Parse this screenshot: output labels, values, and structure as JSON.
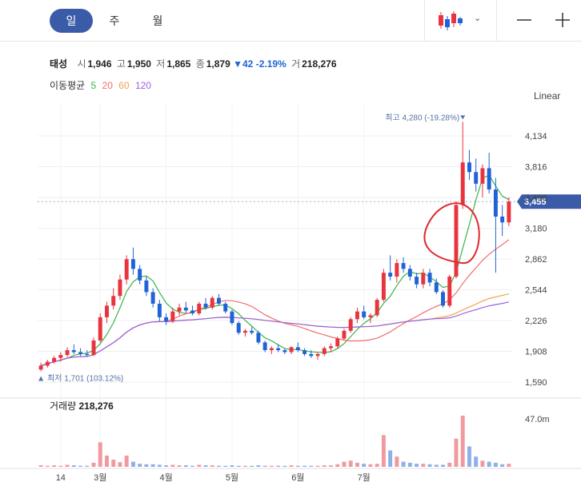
{
  "tabs": [
    {
      "label": "일",
      "active": true
    },
    {
      "label": "주",
      "active": false
    },
    {
      "label": "월",
      "active": false
    }
  ],
  "toolbar": {
    "candle_icon": "candlestick-icon",
    "chevron_icon": "chevron-down-icon",
    "minus_icon": "minus-icon",
    "plus_icon": "plus-icon",
    "linear_label": "Linear"
  },
  "quote": {
    "name": "태성",
    "open_label": "시",
    "open": "1,946",
    "high_label": "고",
    "high": "1,950",
    "low_label": "저",
    "low": "1,865",
    "close_label": "종",
    "close": "1,879",
    "change": "▼42",
    "change_pct": "-2.19%",
    "volume_label": "거",
    "volume": "218,276"
  },
  "moving_average": {
    "label": "이동평균",
    "periods": [
      "5",
      "20",
      "60",
      "120"
    ],
    "colors": [
      "#39b54a",
      "#f06e6e",
      "#f0a050",
      "#9a63e0"
    ]
  },
  "colors": {
    "up": "#e8343e",
    "down": "#1f63d6",
    "current_price_bg": "#3a5ba8",
    "highlight_circle": "#e0282e"
  },
  "chart_data": {
    "type": "candlestick",
    "y_ticks": [
      "4,134",
      "3,816",
      "3,498",
      "3,180",
      "2,862",
      "2,544",
      "2,226",
      "1,908",
      "1,590"
    ],
    "y_tick_values": [
      4134,
      3816,
      3498,
      3180,
      2862,
      2544,
      2226,
      1908,
      1590
    ],
    "ylim": [
      1590,
      4290
    ],
    "x_ticks": [
      "14",
      "3월",
      "4월",
      "5월",
      "6월",
      "7월"
    ],
    "x_tick_index": [
      3,
      9,
      19,
      29,
      39,
      49
    ],
    "current_price": "3,455",
    "current_price_value": 3455,
    "max_label": "최고 4,280 (-19.28%)",
    "max_value": 4280,
    "min_label": "최저 1,701 (103.12%)",
    "min_value": 1701,
    "volume_label": "거래량",
    "volume_value": "218,276",
    "volume_max_label": "47.0m",
    "candles_note": "approximate OHLC values per trading day, read from chart",
    "candles": [
      [
        1720,
        1790,
        1701,
        1760
      ],
      [
        1760,
        1820,
        1740,
        1800
      ],
      [
        1800,
        1860,
        1780,
        1840
      ],
      [
        1840,
        1900,
        1800,
        1870
      ],
      [
        1870,
        1950,
        1850,
        1920
      ],
      [
        1920,
        1980,
        1880,
        1900
      ],
      [
        1900,
        1940,
        1860,
        1880
      ],
      [
        1880,
        1920,
        1850,
        1870
      ],
      [
        1870,
        2050,
        1860,
        2020
      ],
      [
        2020,
        2300,
        2000,
        2260
      ],
      [
        2260,
        2420,
        2200,
        2380
      ],
      [
        2380,
        2560,
        2340,
        2480
      ],
      [
        2480,
        2700,
        2440,
        2650
      ],
      [
        2650,
        2900,
        2600,
        2860
      ],
      [
        2860,
        2980,
        2700,
        2760
      ],
      [
        2760,
        2800,
        2600,
        2640
      ],
      [
        2640,
        2680,
        2480,
        2520
      ],
      [
        2520,
        2560,
        2360,
        2400
      ],
      [
        2400,
        2440,
        2220,
        2260
      ],
      [
        2260,
        2300,
        2180,
        2220
      ],
      [
        2220,
        2360,
        2200,
        2320
      ],
      [
        2320,
        2400,
        2280,
        2360
      ],
      [
        2360,
        2420,
        2300,
        2330
      ],
      [
        2330,
        2380,
        2280,
        2300
      ],
      [
        2300,
        2420,
        2280,
        2400
      ],
      [
        2400,
        2460,
        2340,
        2360
      ],
      [
        2360,
        2480,
        2340,
        2460
      ],
      [
        2460,
        2500,
        2380,
        2400
      ],
      [
        2400,
        2420,
        2300,
        2320
      ],
      [
        2320,
        2340,
        2180,
        2200
      ],
      [
        2200,
        2220,
        2080,
        2100
      ],
      [
        2100,
        2140,
        2060,
        2120
      ],
      [
        2120,
        2160,
        2080,
        2100
      ],
      [
        2100,
        2120,
        1980,
        2000
      ],
      [
        2000,
        2020,
        1900,
        1920
      ],
      [
        1920,
        1960,
        1880,
        1940
      ],
      [
        1940,
        1980,
        1900,
        1920
      ],
      [
        1920,
        1940,
        1880,
        1900
      ],
      [
        1900,
        1960,
        1880,
        1950
      ],
      [
        1950,
        2000,
        1900,
        1920
      ],
      [
        1920,
        1940,
        1860,
        1880
      ],
      [
        1880,
        1920,
        1840,
        1860
      ],
      [
        1860,
        1900,
        1820,
        1880
      ],
      [
        1880,
        1960,
        1860,
        1940
      ],
      [
        1940,
        1990,
        1900,
        1960
      ],
      [
        1960,
        2060,
        1940,
        2040
      ],
      [
        2040,
        2140,
        2020,
        2120
      ],
      [
        2120,
        2260,
        2100,
        2240
      ],
      [
        2240,
        2360,
        2200,
        2320
      ],
      [
        2320,
        2380,
        2240,
        2260
      ],
      [
        2260,
        2300,
        2200,
        2280
      ],
      [
        2280,
        2460,
        2260,
        2440
      ],
      [
        2440,
        2760,
        2420,
        2720
      ],
      [
        2720,
        2900,
        2640,
        2680
      ],
      [
        2680,
        2860,
        2620,
        2820
      ],
      [
        2820,
        2880,
        2720,
        2760
      ],
      [
        2760,
        2800,
        2640,
        2680
      ],
      [
        2680,
        2720,
        2560,
        2600
      ],
      [
        2600,
        2760,
        2560,
        2720
      ],
      [
        2720,
        2760,
        2580,
        2620
      ],
      [
        2620,
        2660,
        2500,
        2520
      ],
      [
        2520,
        2540,
        2360,
        2380
      ],
      [
        2380,
        2700,
        2360,
        2680
      ],
      [
        2680,
        3460,
        2660,
        3420
      ],
      [
        3420,
        4280,
        3380,
        3860
      ],
      [
        3860,
        3990,
        3680,
        3760
      ],
      [
        3760,
        3900,
        3560,
        3640
      ],
      [
        3640,
        3840,
        3500,
        3800
      ],
      [
        3800,
        3960,
        3540,
        3580
      ],
      [
        3580,
        3700,
        2720,
        3300
      ],
      [
        3300,
        3420,
        3100,
        3240
      ],
      [
        3240,
        3500,
        3200,
        3455
      ]
    ],
    "volumes_note": "approximate relative volume 0-1 of 47.0m",
    "volumes": [
      0.03,
      0.02,
      0.03,
      0.02,
      0.04,
      0.03,
      0.02,
      0.02,
      0.08,
      0.48,
      0.22,
      0.14,
      0.09,
      0.22,
      0.1,
      0.06,
      0.05,
      0.05,
      0.04,
      0.03,
      0.04,
      0.03,
      0.03,
      0.02,
      0.04,
      0.03,
      0.03,
      0.02,
      0.02,
      0.03,
      0.02,
      0.02,
      0.02,
      0.03,
      0.02,
      0.02,
      0.02,
      0.02,
      0.03,
      0.02,
      0.02,
      0.02,
      0.02,
      0.03,
      0.03,
      0.05,
      0.1,
      0.12,
      0.08,
      0.06,
      0.05,
      0.06,
      0.62,
      0.32,
      0.2,
      0.1,
      0.08,
      0.06,
      0.06,
      0.05,
      0.04,
      0.04,
      0.08,
      0.55,
      1.0,
      0.4,
      0.2,
      0.12,
      0.1,
      0.08,
      0.05,
      0.06
    ]
  }
}
